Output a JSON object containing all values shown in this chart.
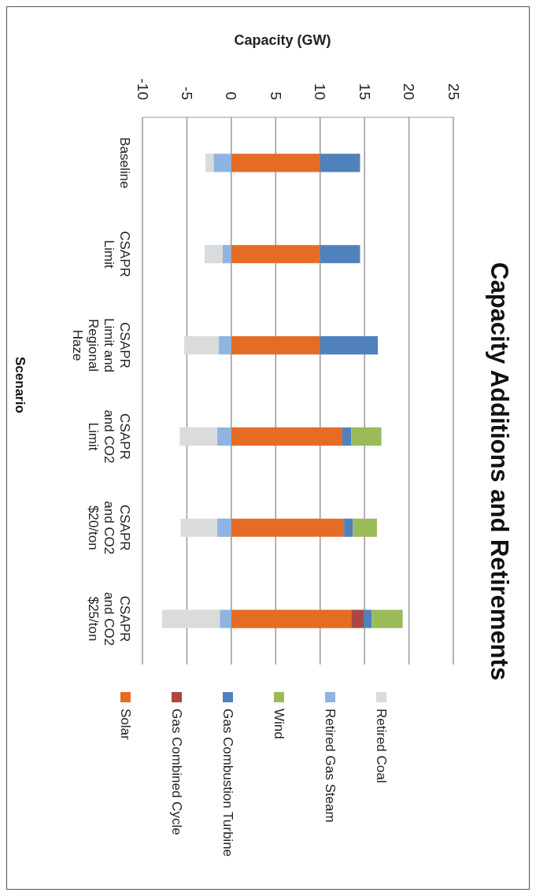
{
  "chart_data": {
    "type": "bar",
    "orientation": "horizontal",
    "title": "Capacity Additions and Retirements",
    "xlabel": "Capacity (GW)",
    "ylabel": "Scenario",
    "stacked": true,
    "categories": [
      "Baseline",
      "CSAPR Limit",
      "CSAPR Limit and Regional Haze",
      "CSAPR and CO2 Limit",
      "CSAPR and CO2 $20/ton",
      "CSAPR and CO2 $25/ton"
    ],
    "series": [
      {
        "name": "Solar",
        "color": "#e46c24",
        "values": [
          10,
          10,
          10,
          12.5,
          12.7,
          13.5
        ]
      },
      {
        "name": "Gas Combined Cycle",
        "color": "#ab4642",
        "values": [
          null,
          null,
          null,
          null,
          null,
          1.4
        ]
      },
      {
        "name": "Gas Combustion Turbine",
        "color": "#4f81bd",
        "values": [
          4.5,
          4.5,
          6.5,
          1,
          1,
          0.9
        ]
      },
      {
        "name": "Wind",
        "color": "#9bbb59",
        "values": [
          null,
          null,
          null,
          3.4,
          2.7,
          3.5
        ]
      },
      {
        "name": "Retired Gas Steam",
        "color": "#8eb4e0",
        "values": [
          -2,
          -1,
          -1.4,
          -1.6,
          -1.6,
          -1.3
        ]
      },
      {
        "name": "Retired Coal",
        "color": "#dadbdc",
        "values": [
          -0.9,
          -2,
          -3.9,
          -4.2,
          -4.1,
          -6.5
        ]
      }
    ],
    "xlim": [
      -10,
      25
    ],
    "xticks": [
      -10,
      -5,
      0,
      5,
      10,
      15,
      20,
      25
    ],
    "grid": "x",
    "legend": "bottom"
  }
}
